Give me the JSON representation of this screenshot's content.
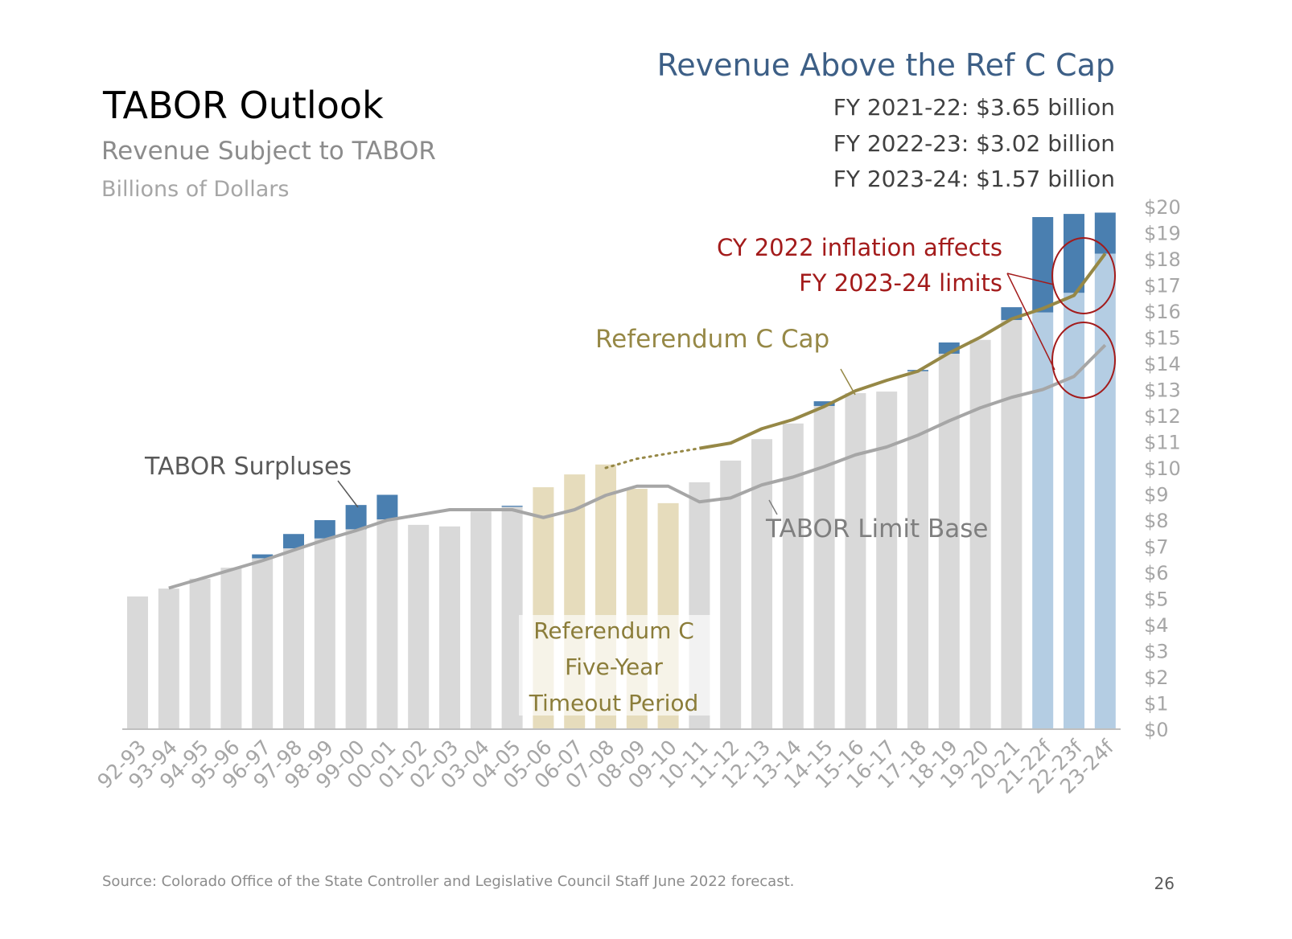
{
  "header": {
    "title": "TABOR Outlook",
    "subtitle": "Revenue Subject to TABOR",
    "units": "Billions of Dollars"
  },
  "callout": {
    "title": "Revenue Above the Ref C Cap",
    "lines": [
      "FY 2021-22: $3.65 billion",
      "FY 2022-23: $3.02 billion",
      "FY 2023-24: $1.57 billion"
    ]
  },
  "annotations": {
    "surpluses": "TABOR Surpluses",
    "ref_c_cap": "Referendum C Cap",
    "limit_base": "TABOR Limit Base",
    "inflation_1": "CY 2022 inflation affects",
    "inflation_2": "FY 2023-24 limits",
    "timeout_1": "Referendum C",
    "timeout_2": "Five-Year",
    "timeout_3": "Timeout Period"
  },
  "footer": {
    "source": "Source: Colorado Office of the State Controller and Legislative Council Staff June 2022 forecast.",
    "page_number": "26"
  },
  "colors": {
    "bar_actual": "#d9d9d9",
    "bar_timeout": "#e6dcbc",
    "bar_forecast": "#b4cde3",
    "surplus": "#4a7fb0",
    "ref_c_cap": "#968846",
    "limit_base": "#a6a6a6",
    "title_blue": "#3d5f86",
    "annotation_red": "#a31b1b"
  },
  "chart_data": {
    "type": "bar",
    "stacked": true,
    "categories": [
      "92-93",
      "93-94",
      "94-95",
      "95-96",
      "96-97",
      "97-98",
      "98-99",
      "99-00",
      "00-01",
      "01-02",
      "02-03",
      "03-04",
      "04-05",
      "05-06",
      "06-07",
      "07-08",
      "08-09",
      "09-10",
      "10-11",
      "11-12",
      "12-13",
      "13-14",
      "14-15",
      "15-16",
      "16-17",
      "17-18",
      "18-19",
      "19-20",
      "20-21",
      "21-22f",
      "22-23f",
      "23-24f"
    ],
    "bar_period": [
      "actual",
      "actual",
      "actual",
      "actual",
      "actual",
      "actual",
      "actual",
      "actual",
      "actual",
      "actual",
      "actual",
      "actual",
      "actual",
      "timeout",
      "timeout",
      "timeout",
      "timeout",
      "timeout",
      "actual",
      "actual",
      "actual",
      "actual",
      "actual",
      "actual",
      "actual",
      "actual",
      "actual",
      "actual",
      "actual",
      "forecast",
      "forecast",
      "forecast"
    ],
    "series": [
      {
        "values": [
          5.08,
          5.38,
          5.76,
          6.18,
          6.54,
          6.92,
          7.3,
          7.65,
          8.03,
          7.82,
          7.76,
          8.33,
          8.51,
          9.26,
          9.75,
          10.13,
          9.2,
          8.65,
          9.45,
          10.28,
          11.1,
          11.7,
          12.37,
          12.86,
          12.92,
          13.7,
          14.37,
          14.9,
          15.66,
          15.95,
          16.7,
          18.2
        ]
      },
      {
        "values": [
          0,
          0,
          0,
          0,
          0.15,
          0.55,
          0.7,
          0.93,
          0.94,
          0,
          0,
          0,
          0.04,
          0,
          0,
          0,
          0,
          0,
          0,
          0,
          0,
          0,
          0.18,
          0,
          0,
          0.05,
          0.43,
          0,
          0.49,
          3.65,
          3.02,
          1.57
        ]
      }
    ],
    "lines": [
      {
        "label": "TABOR Limit Base",
        "start_index": 1,
        "values": [
          null,
          5.4,
          5.75,
          6.1,
          6.45,
          6.85,
          7.25,
          7.6,
          8.0,
          8.2,
          8.4,
          8.4,
          8.4,
          8.1,
          8.4,
          8.95,
          9.3,
          9.3,
          8.7,
          8.85,
          9.35,
          9.65,
          10.05,
          10.5,
          10.8,
          11.25,
          11.8,
          12.3,
          12.7,
          13.0,
          13.5,
          14.7
        ]
      },
      {
        "label": "Referendum C Cap",
        "dotted_until_index": 18,
        "values": [
          null,
          null,
          null,
          null,
          null,
          null,
          null,
          null,
          null,
          null,
          null,
          null,
          null,
          null,
          null,
          10.0,
          10.35,
          10.55,
          10.75,
          10.95,
          11.5,
          11.85,
          12.35,
          12.95,
          13.35,
          13.7,
          14.4,
          15.0,
          15.7,
          16.1,
          16.6,
          18.2
        ]
      }
    ],
    "ylim": [
      0,
      20
    ],
    "ytick_labels": [
      "$0",
      "$1",
      "$2",
      "$3",
      "$4",
      "$5",
      "$6",
      "$7",
      "$8",
      "$9",
      "$10",
      "$11",
      "$12",
      "$13",
      "$14",
      "$15",
      "$16",
      "$17",
      "$18",
      "$19",
      "$20"
    ],
    "yaxis_position": "right",
    "grid": false
  }
}
